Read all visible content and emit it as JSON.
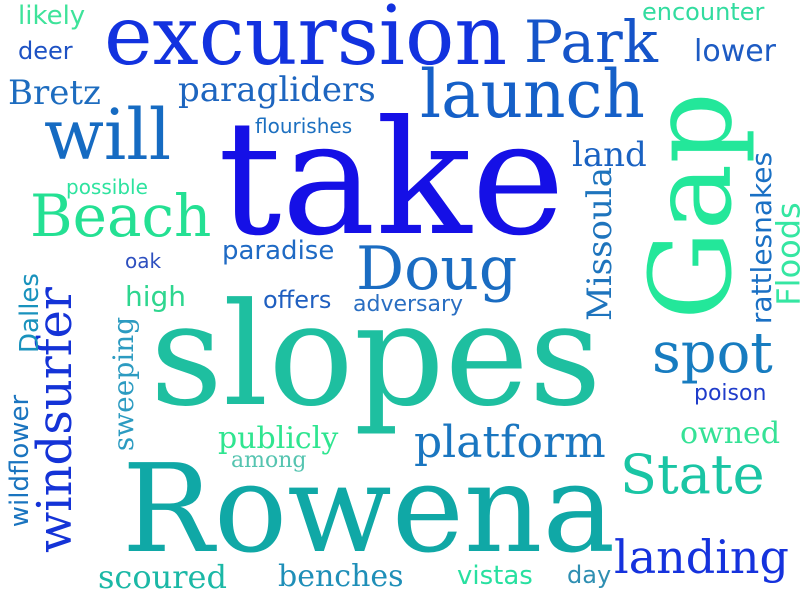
{
  "words": [
    {
      "key": "take",
      "text": "take",
      "color": "#1510e6"
    },
    {
      "key": "slopes",
      "text": "slopes",
      "color": "#1ebfa0"
    },
    {
      "key": "rowena",
      "text": "Rowena",
      "color": "#10a8a6"
    },
    {
      "key": "excursion",
      "text": "excursion",
      "color": "#1232df"
    },
    {
      "key": "gap",
      "text": "Gap",
      "color": "#23e79a"
    },
    {
      "key": "launch",
      "text": "launch",
      "color": "#1560c8"
    },
    {
      "key": "park",
      "text": "Park",
      "color": "#1554c9"
    },
    {
      "key": "will",
      "text": "will",
      "color": "#166bc2"
    },
    {
      "key": "beach",
      "text": "Beach",
      "color": "#24e093"
    },
    {
      "key": "doug",
      "text": "Doug",
      "color": "#1a6cc2"
    },
    {
      "key": "windsurfer",
      "text": "windsurfer",
      "color": "#1433d7"
    },
    {
      "key": "spot",
      "text": "spot",
      "color": "#177cc0"
    },
    {
      "key": "state",
      "text": "State",
      "color": "#1ac5a4"
    },
    {
      "key": "landing",
      "text": "landing",
      "color": "#1532dd"
    },
    {
      "key": "platform",
      "text": "platform",
      "color": "#1a76c0"
    },
    {
      "key": "paragliders",
      "text": "paragliders",
      "color": "#1d65bf"
    },
    {
      "key": "bretz",
      "text": "Bretz",
      "color": "#1d6cbf"
    },
    {
      "key": "missoula",
      "text": "Missoula",
      "color": "#1e74bd"
    },
    {
      "key": "floods",
      "text": "Floods",
      "color": "#35e6a2"
    },
    {
      "key": "rattlesnakes",
      "text": "rattlesnakes",
      "color": "#1a70c4"
    },
    {
      "key": "wildflower",
      "text": "wildflower",
      "color": "#1a74bf"
    },
    {
      "key": "dalles",
      "text": "Dalles",
      "color": "#1992bd"
    },
    {
      "key": "sweeping",
      "text": "sweeping",
      "color": "#2c9bc1"
    },
    {
      "key": "scoured",
      "text": "scoured",
      "color": "#1bb8a6"
    },
    {
      "key": "benches",
      "text": "benches",
      "color": "#1f8fb8"
    },
    {
      "key": "vistas",
      "text": "vistas",
      "color": "#28e0a0"
    },
    {
      "key": "day",
      "text": "day",
      "color": "#2f8fb2"
    },
    {
      "key": "publicly",
      "text": "publicly",
      "color": "#2fe590"
    },
    {
      "key": "among",
      "text": "among",
      "color": "#55c4b0"
    },
    {
      "key": "owned",
      "text": "owned",
      "color": "#36e296"
    },
    {
      "key": "poison",
      "text": "poison",
      "color": "#1f3cca"
    },
    {
      "key": "offers",
      "text": "offers",
      "color": "#1f5fc0"
    },
    {
      "key": "adversary",
      "text": "adversary",
      "color": "#2a6fc2"
    },
    {
      "key": "paradise",
      "text": "paradise",
      "color": "#1f6ac4"
    },
    {
      "key": "high",
      "text": "high",
      "color": "#2ed68f"
    },
    {
      "key": "oak",
      "text": "oak",
      "color": "#2d4fbf"
    },
    {
      "key": "possible",
      "text": "possible",
      "color": "#2ee39f"
    },
    {
      "key": "flourishes",
      "text": "flourishes",
      "color": "#1d70c0"
    },
    {
      "key": "land",
      "text": "land",
      "color": "#1a62c2"
    },
    {
      "key": "likely",
      "text": "likely",
      "color": "#3ee39a"
    },
    {
      "key": "deer",
      "text": "deer",
      "color": "#1e52c4"
    },
    {
      "key": "encounter",
      "text": "encounter",
      "color": "#32dc9f"
    },
    {
      "key": "lower",
      "text": "lower",
      "color": "#1d5bc3"
    }
  ]
}
